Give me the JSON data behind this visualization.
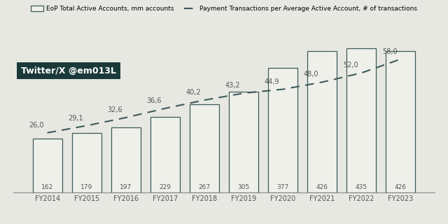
{
  "years": [
    "FY2014",
    "FY2015",
    "FY2016",
    "FY2017",
    "FY2018",
    "FY2019",
    "FY2020",
    "FY2021",
    "FY2022",
    "FY2023"
  ],
  "active_accounts": [
    162,
    179,
    197,
    229,
    267,
    305,
    377,
    426,
    435,
    426
  ],
  "transactions_per_account": [
    26.0,
    29.1,
    32.6,
    36.6,
    40.2,
    43.2,
    44.9,
    48.0,
    52.0,
    58.0
  ],
  "bar_color": "#f0f0eb",
  "bar_edge_color": "#3d5a5a",
  "line_color": "#3d5a5a",
  "background_color": "#e8e8e2",
  "text_color": "#555555",
  "watermark_bg": "#1a3a3a",
  "watermark_text": "Twitter/X @em013L",
  "watermark_text_color": "#ffffff",
  "legend_label_bar": "EoP Total Active Accounts, mm accounts",
  "legend_label_line": "Payment Transactions per Average Active Account, # of transactions",
  "bar_width": 0.75,
  "ylim_bar": [
    0,
    500
  ],
  "ylim_line": [
    0,
    72
  ],
  "figsize": [
    6.4,
    3.2
  ],
  "dpi": 100
}
